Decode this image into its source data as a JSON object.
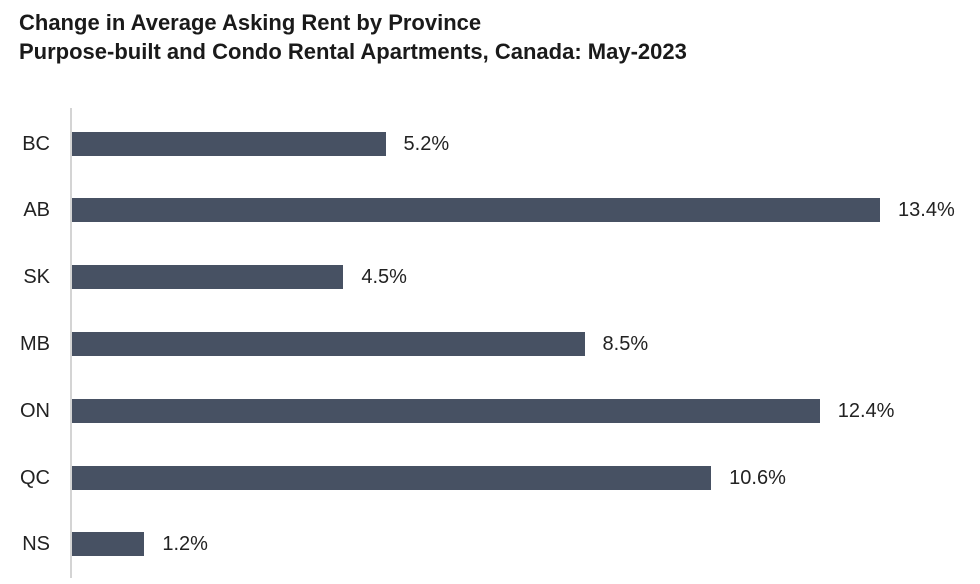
{
  "title_line1": "Change in Average Asking Rent by Province",
  "title_line2": "Purpose-built and Condo Rental Apartments, Canada: May-2023",
  "bar_color": "#475163",
  "rows": [
    {
      "label": "BC",
      "value": 5.2,
      "text": "5.2%"
    },
    {
      "label": "AB",
      "value": 13.4,
      "text": "13.4%"
    },
    {
      "label": "SK",
      "value": 4.5,
      "text": "4.5%"
    },
    {
      "label": "MB",
      "value": 8.5,
      "text": "8.5%"
    },
    {
      "label": "ON",
      "value": 12.4,
      "text": "12.4%"
    },
    {
      "label": "QC",
      "value": 10.6,
      "text": "10.6%"
    },
    {
      "label": "NS",
      "value": 1.2,
      "text": "1.2%"
    }
  ],
  "chart_data": {
    "type": "bar",
    "orientation": "horizontal",
    "title": "Change in Average Asking Rent by Province / Purpose-built and Condo Rental Apartments, Canada: May-2023",
    "categories": [
      "BC",
      "AB",
      "SK",
      "MB",
      "ON",
      "QC",
      "NS"
    ],
    "values": [
      5.2,
      13.4,
      4.5,
      8.5,
      12.4,
      10.6,
      1.2
    ],
    "data_labels": [
      "5.2%",
      "13.4%",
      "4.5%",
      "8.5%",
      "12.4%",
      "10.6%",
      "1.2%"
    ],
    "xlabel": "",
    "ylabel": "",
    "grid": false,
    "legend": null
  }
}
